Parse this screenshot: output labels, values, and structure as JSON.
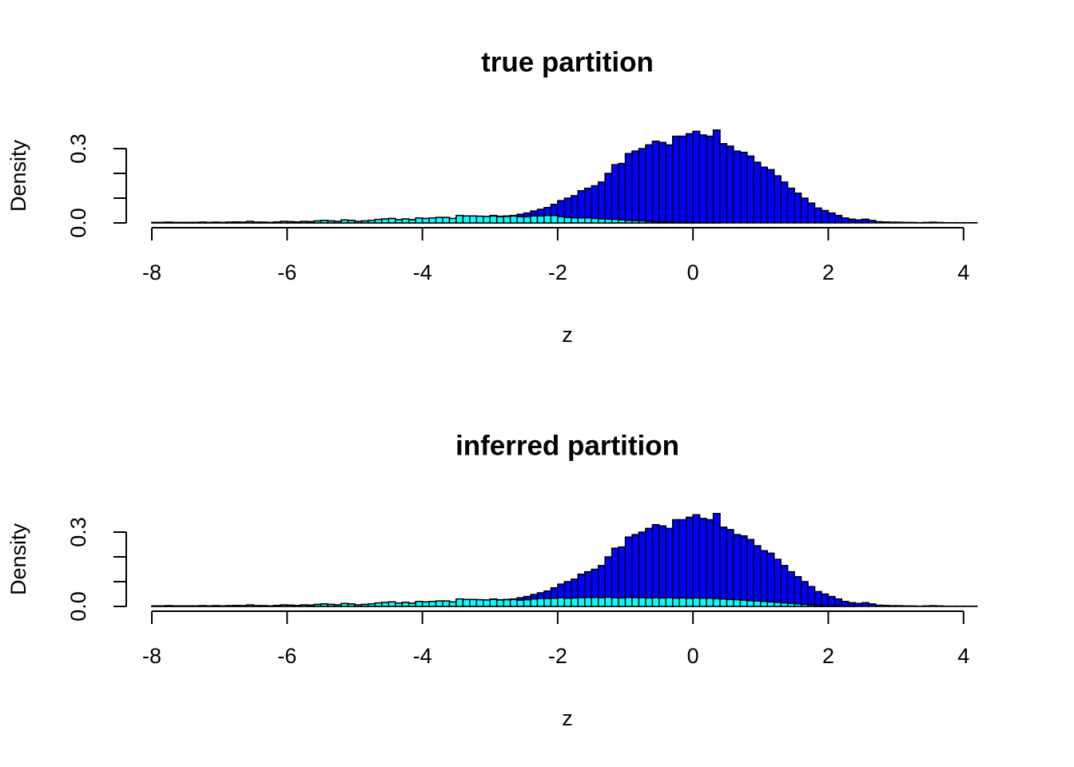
{
  "chart_data": [
    {
      "type": "histogram",
      "title": "true partition",
      "xlabel": "z",
      "ylabel": "Density",
      "bins": [
        -8,
        -7.9,
        -7.8,
        -7.7,
        -7.6,
        -7.5,
        -7.4,
        -7.3,
        -7.2,
        -7.1,
        -7,
        -6.9,
        -6.8,
        -6.7,
        -6.6,
        -6.5,
        -6.4,
        -6.3,
        -6.2,
        -6.1,
        -6,
        -5.9,
        -5.8,
        -5.7,
        -5.6,
        -5.5,
        -5.4,
        -5.3,
        -5.2,
        -5.1,
        -5,
        -4.9,
        -4.8,
        -4.7,
        -4.6,
        -4.5,
        -4.4,
        -4.3,
        -4.2,
        -4.1,
        -4,
        -3.9,
        -3.8,
        -3.7,
        -3.6,
        -3.5,
        -3.4,
        -3.3,
        -3.2,
        -3.1,
        -3,
        -2.9,
        -2.8,
        -2.7,
        -2.6,
        -2.5,
        -2.4,
        -2.3,
        -2.2,
        -2.1,
        -2,
        -1.9,
        -1.8,
        -1.7,
        -1.6,
        -1.5,
        -1.4,
        -1.3,
        -1.2,
        -1.1,
        -1,
        -0.9,
        -0.8,
        -0.7,
        -0.6,
        -0.5,
        -0.4,
        -0.3,
        -0.2,
        -0.1,
        0,
        0.1,
        0.2,
        0.3,
        0.4,
        0.5,
        0.6,
        0.7,
        0.8,
        0.9,
        1,
        1.1,
        1.2,
        1.3,
        1.4,
        1.5,
        1.6,
        1.7,
        1.8,
        1.9,
        2,
        2.1,
        2.2,
        2.3,
        2.4,
        2.5,
        2.6,
        2.7,
        2.8,
        2.9,
        3,
        3.1,
        3.2,
        3.3,
        3.4,
        3.5,
        3.6,
        3.7,
        3.8,
        3.9,
        4,
        4.1,
        4.2
      ],
      "series": [
        {
          "color": "#0000ff",
          "values": [
            0.002,
            0.002,
            0.003,
            0.002,
            0.002,
            0.002,
            0.002,
            0.003,
            0.002,
            0.003,
            0.002,
            0.003,
            0.004,
            0.003,
            0.006,
            0.003,
            0.003,
            0.002,
            0.004,
            0.006,
            0.005,
            0.004,
            0.006,
            0.005,
            0.008,
            0.01,
            0.008,
            0.006,
            0.012,
            0.01,
            0.006,
            0.008,
            0.01,
            0.014,
            0.016,
            0.018,
            0.013,
            0.016,
            0.013,
            0.02,
            0.018,
            0.02,
            0.022,
            0.022,
            0.018,
            0.03,
            0.028,
            0.028,
            0.027,
            0.026,
            0.03,
            0.027,
            0.028,
            0.03,
            0.035,
            0.04,
            0.048,
            0.055,
            0.062,
            0.075,
            0.09,
            0.1,
            0.11,
            0.13,
            0.14,
            0.15,
            0.165,
            0.2,
            0.235,
            0.24,
            0.28,
            0.29,
            0.3,
            0.315,
            0.33,
            0.325,
            0.315,
            0.35,
            0.35,
            0.36,
            0.37,
            0.355,
            0.35,
            0.375,
            0.32,
            0.31,
            0.29,
            0.285,
            0.27,
            0.245,
            0.225,
            0.215,
            0.19,
            0.165,
            0.14,
            0.12,
            0.1,
            0.08,
            0.06,
            0.05,
            0.04,
            0.03,
            0.02,
            0.015,
            0.012,
            0.015,
            0.01,
            0.005,
            0.004,
            0.003,
            0.003,
            0.002,
            0.002,
            0.001,
            0.002,
            0.003,
            0.002,
            0.001,
            0.001,
            0.001,
            0.001,
            0.001
          ]
        },
        {
          "color": "#00ffff",
          "values": [
            0.002,
            0.002,
            0.003,
            0.002,
            0.002,
            0.002,
            0.002,
            0.003,
            0.002,
            0.003,
            0.002,
            0.003,
            0.004,
            0.003,
            0.006,
            0.003,
            0.003,
            0.002,
            0.004,
            0.006,
            0.005,
            0.004,
            0.006,
            0.005,
            0.008,
            0.01,
            0.008,
            0.006,
            0.012,
            0.01,
            0.006,
            0.008,
            0.01,
            0.014,
            0.016,
            0.018,
            0.013,
            0.016,
            0.013,
            0.02,
            0.018,
            0.02,
            0.022,
            0.022,
            0.018,
            0.03,
            0.028,
            0.028,
            0.027,
            0.026,
            0.028,
            0.025,
            0.026,
            0.028,
            0.025,
            0.025,
            0.028,
            0.028,
            0.03,
            0.03,
            0.025,
            0.022,
            0.02,
            0.02,
            0.02,
            0.018,
            0.016,
            0.015,
            0.014,
            0.012,
            0.01,
            0.009,
            0.008,
            0.006,
            0.005,
            0.004,
            0.004,
            0.003,
            0.002,
            0.002,
            0.002,
            0.001,
            0.001,
            0.001,
            0,
            0,
            0,
            0,
            0,
            0,
            0,
            0,
            0,
            0,
            0,
            0,
            0,
            0,
            0,
            0,
            0,
            0,
            0,
            0,
            0,
            0,
            0,
            0,
            0,
            0,
            0,
            0,
            0,
            0,
            0,
            0,
            0,
            0,
            0,
            0,
            0,
            0
          ]
        }
      ],
      "xlim": [
        -8,
        4.2
      ],
      "xticks": [
        -8,
        -6,
        -4,
        -2,
        0,
        2,
        4
      ],
      "ylim": [
        0,
        0.39
      ],
      "yticks": [
        {
          "value": 0,
          "label": "0.0"
        },
        {
          "value": 0.1,
          "label": null
        },
        {
          "value": 0.2,
          "label": null
        },
        0.3
      ]
    },
    {
      "type": "histogram",
      "title": "inferred partition",
      "xlabel": "z",
      "ylabel": "Density",
      "bins": [
        -8,
        -7.9,
        -7.8,
        -7.7,
        -7.6,
        -7.5,
        -7.4,
        -7.3,
        -7.2,
        -7.1,
        -7,
        -6.9,
        -6.8,
        -6.7,
        -6.6,
        -6.5,
        -6.4,
        -6.3,
        -6.2,
        -6.1,
        -6,
        -5.9,
        -5.8,
        -5.7,
        -5.6,
        -5.5,
        -5.4,
        -5.3,
        -5.2,
        -5.1,
        -5,
        -4.9,
        -4.8,
        -4.7,
        -4.6,
        -4.5,
        -4.4,
        -4.3,
        -4.2,
        -4.1,
        -4,
        -3.9,
        -3.8,
        -3.7,
        -3.6,
        -3.5,
        -3.4,
        -3.3,
        -3.2,
        -3.1,
        -3,
        -2.9,
        -2.8,
        -2.7,
        -2.6,
        -2.5,
        -2.4,
        -2.3,
        -2.2,
        -2.1,
        -2,
        -1.9,
        -1.8,
        -1.7,
        -1.6,
        -1.5,
        -1.4,
        -1.3,
        -1.2,
        -1.1,
        -1,
        -0.9,
        -0.8,
        -0.7,
        -0.6,
        -0.5,
        -0.4,
        -0.3,
        -0.2,
        -0.1,
        0,
        0.1,
        0.2,
        0.3,
        0.4,
        0.5,
        0.6,
        0.7,
        0.8,
        0.9,
        1,
        1.1,
        1.2,
        1.3,
        1.4,
        1.5,
        1.6,
        1.7,
        1.8,
        1.9,
        2,
        2.1,
        2.2,
        2.3,
        2.4,
        2.5,
        2.6,
        2.7,
        2.8,
        2.9,
        3,
        3.1,
        3.2,
        3.3,
        3.4,
        3.5,
        3.6,
        3.7,
        3.8,
        3.9,
        4,
        4.1,
        4.2
      ],
      "series": [
        {
          "color": "#0000ff",
          "values": [
            0.002,
            0.002,
            0.003,
            0.002,
            0.002,
            0.002,
            0.002,
            0.003,
            0.002,
            0.003,
            0.002,
            0.003,
            0.004,
            0.003,
            0.006,
            0.003,
            0.003,
            0.002,
            0.004,
            0.006,
            0.005,
            0.004,
            0.006,
            0.005,
            0.008,
            0.01,
            0.008,
            0.006,
            0.012,
            0.01,
            0.006,
            0.008,
            0.01,
            0.014,
            0.016,
            0.018,
            0.013,
            0.016,
            0.013,
            0.02,
            0.018,
            0.02,
            0.022,
            0.022,
            0.018,
            0.03,
            0.028,
            0.028,
            0.027,
            0.026,
            0.03,
            0.027,
            0.028,
            0.03,
            0.035,
            0.04,
            0.048,
            0.055,
            0.062,
            0.075,
            0.09,
            0.1,
            0.11,
            0.13,
            0.14,
            0.15,
            0.165,
            0.2,
            0.235,
            0.24,
            0.28,
            0.29,
            0.3,
            0.315,
            0.33,
            0.325,
            0.315,
            0.35,
            0.35,
            0.36,
            0.37,
            0.355,
            0.35,
            0.375,
            0.32,
            0.31,
            0.29,
            0.285,
            0.27,
            0.245,
            0.225,
            0.215,
            0.19,
            0.165,
            0.14,
            0.12,
            0.1,
            0.08,
            0.06,
            0.05,
            0.04,
            0.03,
            0.02,
            0.015,
            0.012,
            0.015,
            0.01,
            0.005,
            0.004,
            0.003,
            0.003,
            0.002,
            0.002,
            0.001,
            0.002,
            0.003,
            0.002,
            0.001,
            0.001,
            0.001,
            0.001,
            0.001
          ]
        },
        {
          "color": "#00ffff",
          "values": [
            0.002,
            0.002,
            0.003,
            0.002,
            0.002,
            0.002,
            0.002,
            0.003,
            0.002,
            0.003,
            0.002,
            0.003,
            0.004,
            0.003,
            0.006,
            0.003,
            0.003,
            0.002,
            0.004,
            0.006,
            0.005,
            0.004,
            0.006,
            0.005,
            0.008,
            0.01,
            0.008,
            0.006,
            0.012,
            0.01,
            0.006,
            0.008,
            0.01,
            0.014,
            0.016,
            0.018,
            0.013,
            0.016,
            0.013,
            0.02,
            0.018,
            0.02,
            0.022,
            0.022,
            0.018,
            0.03,
            0.028,
            0.028,
            0.027,
            0.026,
            0.028,
            0.026,
            0.027,
            0.028,
            0.025,
            0.027,
            0.03,
            0.032,
            0.032,
            0.033,
            0.035,
            0.033,
            0.034,
            0.035,
            0.036,
            0.036,
            0.035,
            0.037,
            0.035,
            0.034,
            0.036,
            0.035,
            0.035,
            0.034,
            0.035,
            0.034,
            0.035,
            0.033,
            0.034,
            0.033,
            0.034,
            0.033,
            0.033,
            0.031,
            0.03,
            0.028,
            0.027,
            0.025,
            0.023,
            0.022,
            0.02,
            0.018,
            0.016,
            0.014,
            0.012,
            0.01,
            0.008,
            0.006,
            0.005,
            0.003,
            0.002,
            0.002,
            0.001,
            0.001,
            0,
            0,
            0,
            0,
            0,
            0,
            0,
            0,
            0,
            0,
            0,
            0,
            0,
            0,
            0,
            0,
            0,
            0
          ]
        }
      ],
      "xlim": [
        -8,
        4.2
      ],
      "xticks": [
        -8,
        -6,
        -4,
        -2,
        0,
        2,
        4
      ],
      "ylim": [
        0,
        0.39
      ],
      "yticks": [
        {
          "value": 0,
          "label": "0.0"
        },
        {
          "value": 0.1,
          "label": null
        },
        {
          "value": 0.2,
          "label": null
        },
        0.3
      ]
    }
  ]
}
